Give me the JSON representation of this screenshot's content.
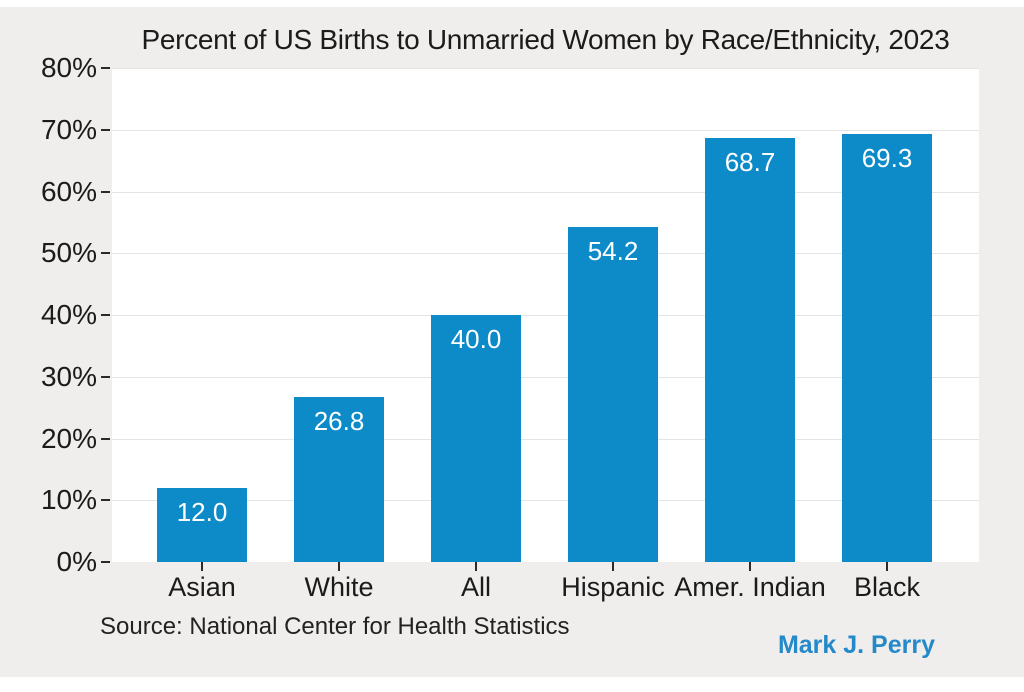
{
  "chart_data": {
    "type": "bar",
    "title": "Percent of US Births to Unmarried Women by Race/Ethnicity, 2023",
    "categories": [
      "Asian",
      "White",
      "All",
      "Hispanic",
      "Amer. Indian",
      "Black"
    ],
    "values": [
      12.0,
      26.8,
      40.0,
      54.2,
      68.7,
      69.3
    ],
    "value_labels": [
      "12.0",
      "26.8",
      "40.0",
      "54.2",
      "68.7",
      "69.3"
    ],
    "xlabel": "",
    "ylabel": "",
    "ylim": [
      0,
      80
    ],
    "ytick_labels": [
      "0%",
      "10%",
      "20%",
      "30%",
      "40%",
      "50%",
      "60%",
      "70%",
      "80%"
    ],
    "grid": true,
    "legend": "none",
    "bar_color": "#0d8bc9",
    "value_label_color": "#ffffff",
    "plot_background": "#ffffff",
    "page_background": "#efeeed"
  },
  "footer": {
    "source": "Source: National Center for Health Statistics",
    "credit": "Mark J. Perry",
    "credit_color": "#2489c9"
  }
}
